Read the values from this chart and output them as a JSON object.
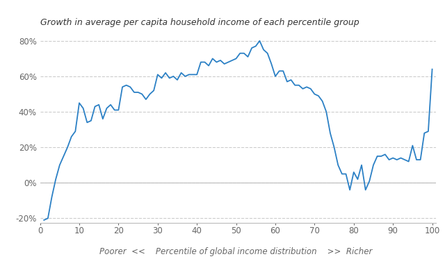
{
  "title": "Growth in average per capita household income of each percentile group",
  "line_color": "#2B80C5",
  "background_color": "#ffffff",
  "ylim": [
    -0.225,
    0.855
  ],
  "xlim": [
    0,
    101
  ],
  "yticks": [
    -0.2,
    0.0,
    0.2,
    0.4,
    0.6,
    0.8
  ],
  "xticks": [
    0,
    10,
    20,
    30,
    40,
    50,
    60,
    70,
    80,
    90,
    100
  ],
  "x": [
    1,
    2,
    3,
    4,
    5,
    6,
    7,
    8,
    9,
    10,
    11,
    12,
    13,
    14,
    15,
    16,
    17,
    18,
    19,
    20,
    21,
    22,
    23,
    24,
    25,
    26,
    27,
    28,
    29,
    30,
    31,
    32,
    33,
    34,
    35,
    36,
    37,
    38,
    39,
    40,
    41,
    42,
    43,
    44,
    45,
    46,
    47,
    48,
    49,
    50,
    51,
    52,
    53,
    54,
    55,
    56,
    57,
    58,
    59,
    60,
    61,
    62,
    63,
    64,
    65,
    66,
    67,
    68,
    69,
    70,
    71,
    72,
    73,
    74,
    75,
    76,
    77,
    78,
    79,
    80,
    81,
    82,
    83,
    84,
    85,
    86,
    87,
    88,
    89,
    90,
    91,
    92,
    93,
    94,
    95,
    96,
    97,
    98,
    99,
    100
  ],
  "y": [
    -0.21,
    -0.2,
    -0.08,
    0.02,
    0.1,
    0.15,
    0.2,
    0.26,
    0.29,
    0.45,
    0.42,
    0.34,
    0.35,
    0.43,
    0.44,
    0.36,
    0.42,
    0.44,
    0.41,
    0.41,
    0.54,
    0.55,
    0.54,
    0.51,
    0.51,
    0.5,
    0.47,
    0.5,
    0.52,
    0.61,
    0.59,
    0.62,
    0.59,
    0.6,
    0.58,
    0.62,
    0.6,
    0.61,
    0.61,
    0.61,
    0.68,
    0.68,
    0.66,
    0.7,
    0.68,
    0.69,
    0.67,
    0.68,
    0.69,
    0.7,
    0.73,
    0.73,
    0.71,
    0.76,
    0.77,
    0.8,
    0.75,
    0.73,
    0.67,
    0.6,
    0.63,
    0.63,
    0.57,
    0.58,
    0.55,
    0.55,
    0.53,
    0.54,
    0.53,
    0.5,
    0.49,
    0.46,
    0.4,
    0.28,
    0.2,
    0.1,
    0.05,
    0.05,
    -0.04,
    0.06,
    0.02,
    0.1,
    -0.04,
    0.01,
    0.1,
    0.15,
    0.15,
    0.16,
    0.13,
    0.14,
    0.13,
    0.14,
    0.13,
    0.12,
    0.21,
    0.13,
    0.13,
    0.28,
    0.29,
    0.64
  ],
  "grid_color": "#cccccc",
  "spine_color": "#bbbbbb",
  "tick_color": "#666666",
  "title_color": "#333333",
  "label_color": "#666666"
}
